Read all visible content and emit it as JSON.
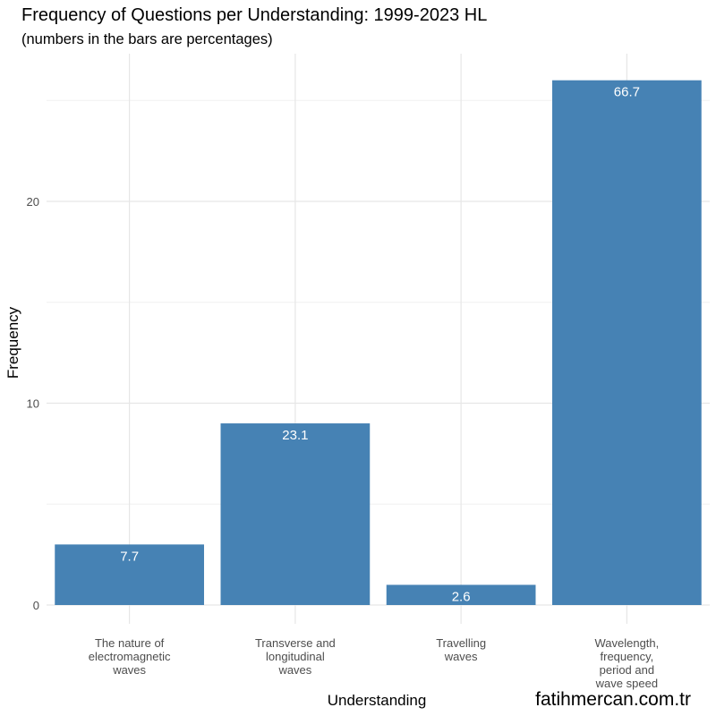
{
  "chart_data": {
    "type": "bar",
    "title": "Frequency of Questions per Understanding: 1999-2023 HL",
    "subtitle": "(numbers in the bars are percentages)",
    "xlabel": "Understanding",
    "ylabel": "Frequency",
    "categories": [
      [
        "The nature of",
        "electromagnetic",
        "waves"
      ],
      [
        "Transverse and",
        "longitudinal",
        "waves"
      ],
      [
        "Travelling",
        "waves"
      ],
      [
        "Wavelength,",
        "frequency,",
        "period and",
        "wave speed"
      ]
    ],
    "values": [
      3,
      9,
      1,
      26
    ],
    "percent_labels": [
      "7.7",
      "23.1",
      "2.6",
      "66.7"
    ],
    "ylim": [
      0,
      27
    ],
    "yticks": [
      0,
      10,
      20
    ],
    "grid": true,
    "bar_color": "#4682B4"
  },
  "watermark": "fatihmercan.com.tr"
}
